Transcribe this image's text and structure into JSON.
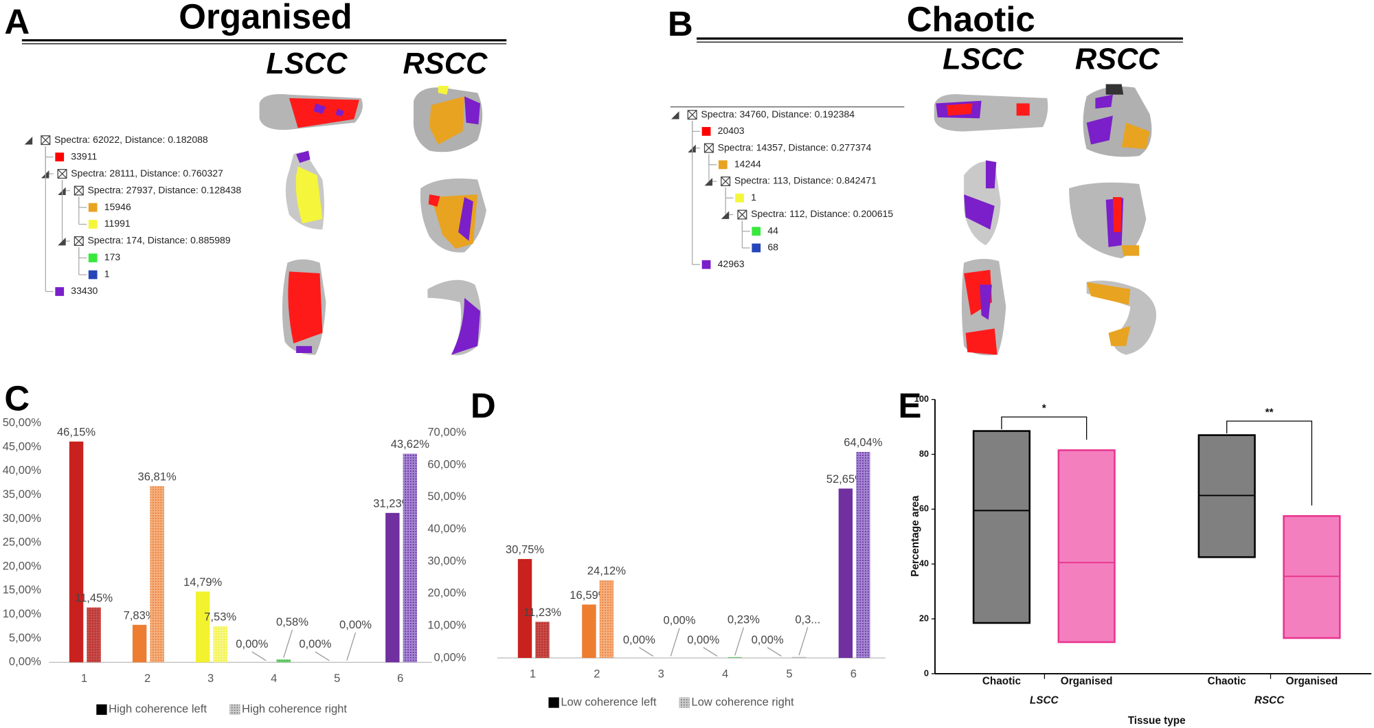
{
  "panels": {
    "A": {
      "letter": "A",
      "title": "Organised",
      "columns": [
        "LSCC",
        "RSCC"
      ],
      "tree": {
        "label": "Spectra: 62022, Distance: 0.182088",
        "children": [
          {
            "label": "33911",
            "color": "#ff0000"
          },
          {
            "label": "Spectra: 28111, Distance: 0.760327",
            "children": [
              {
                "label": "Spectra: 27937, Distance: 0.128438",
                "children": [
                  {
                    "label": "15946",
                    "color": "#e8a321"
                  },
                  {
                    "label": "11991",
                    "color": "#f5f53b"
                  }
                ]
              },
              {
                "label": "Spectra: 174, Distance: 0.885989",
                "children": [
                  {
                    "label": "173",
                    "color": "#39e83c"
                  },
                  {
                    "label": "1",
                    "color": "#2446b8"
                  }
                ]
              }
            ]
          },
          {
            "label": "33430",
            "color": "#7a1fc9"
          }
        ]
      }
    },
    "B": {
      "letter": "B",
      "title": "Chaotic",
      "columns": [
        "LSCC",
        "RSCC"
      ],
      "tree": {
        "label": "Spectra: 34760, Distance: 0.192384",
        "children": [
          {
            "label": "20403",
            "color": "#ff0000"
          },
          {
            "label": "Spectra: 14357, Distance: 0.277374",
            "children": [
              {
                "label": "14244",
                "color": "#e8a321"
              },
              {
                "label": "Spectra: 113, Distance: 0.842471",
                "children": [
                  {
                    "label": "1",
                    "color": "#f5f53b"
                  },
                  {
                    "label": "Spectra: 112, Distance: 0.200615",
                    "children": [
                      {
                        "label": "44",
                        "color": "#39e83c"
                      },
                      {
                        "label": "68",
                        "color": "#2446b8"
                      }
                    ]
                  }
                ]
              }
            ]
          },
          {
            "label": "42963",
            "color": "#7a1fc9"
          }
        ]
      }
    }
  },
  "chart_data": [
    {
      "type": "bar",
      "letter": "C",
      "categories": [
        "1",
        "2",
        "3",
        "4",
        "5",
        "6"
      ],
      "category_colors": [
        "#c9211e",
        "#ed7d31",
        "#f2f22e",
        "#39b54a",
        "#a6a6a6",
        "#7030a0"
      ],
      "category_colors_right": [
        "#c0504d",
        "#f4b183",
        "#f7f78a",
        "#70d070",
        "#c8c8c8",
        "#a48ad4"
      ],
      "series": [
        {
          "name": "High coherence left",
          "color": "#000000",
          "values": [
            46.15,
            7.83,
            14.79,
            0,
            0,
            31.23
          ],
          "value_labels": [
            "46,15%",
            "7,83%",
            "14,79%",
            "0,00%",
            "0,00%",
            "31,23%"
          ]
        },
        {
          "name": "High coherence right",
          "color": "#7f7f7f",
          "values": [
            11.45,
            36.81,
            7.53,
            0.58,
            0,
            43.62
          ],
          "value_labels": [
            "11,45%",
            "36,81%",
            "7,53%",
            "0,58%",
            "0,00%",
            "43,62%"
          ]
        }
      ],
      "ylim": [
        0,
        50
      ],
      "yticks": [
        {
          "value": 0,
          "label": "0,00%"
        },
        {
          "value": 5,
          "label": "5,00%"
        },
        {
          "value": 10,
          "label": "10,00%"
        },
        {
          "value": 15,
          "label": "15,00%"
        },
        {
          "value": 20,
          "label": "20,00%"
        },
        {
          "value": 25,
          "label": "25,00%"
        },
        {
          "value": 30,
          "label": "30,00%"
        },
        {
          "value": 35,
          "label": "35,00%"
        },
        {
          "value": 40,
          "label": "40,00%"
        },
        {
          "value": 45,
          "label": "45,00%"
        },
        {
          "value": 50,
          "label": "50,00%"
        }
      ],
      "legend": "bottom"
    },
    {
      "type": "bar",
      "letter": "D",
      "categories": [
        "1",
        "2",
        "3",
        "4",
        "5",
        "6"
      ],
      "category_colors": [
        "#c9211e",
        "#ed7d31",
        "#f2f22e",
        "#39b54a",
        "#a6a6a6",
        "#7030a0"
      ],
      "category_colors_right": [
        "#c0504d",
        "#f4b183",
        "#f7f78a",
        "#70d070",
        "#c8c8c8",
        "#a48ad4"
      ],
      "series": [
        {
          "name": "Low coherence left",
          "color": "#000000",
          "values": [
            30.75,
            16.59,
            0,
            0,
            0,
            52.65
          ],
          "value_labels": [
            "30,75%",
            "16,59%",
            "0,00%",
            "0,00%",
            "0,00%",
            "52,65%"
          ]
        },
        {
          "name": "Low coherence right",
          "color": "#7f7f7f",
          "values": [
            11.23,
            24.12,
            0,
            0.23,
            0.3,
            64.04
          ],
          "value_labels": [
            "11,23%",
            "24,12%",
            "0,00%",
            "0,23%",
            "0,3...",
            "64,04%"
          ]
        }
      ],
      "ylim": [
        0,
        70
      ],
      "yticks": [
        {
          "value": 0,
          "label": "0,00%"
        },
        {
          "value": 10,
          "label": "10,00%"
        },
        {
          "value": 20,
          "label": "20,00%"
        },
        {
          "value": 30,
          "label": "30,00%"
        },
        {
          "value": 40,
          "label": "40,00%"
        },
        {
          "value": 50,
          "label": "50,00%"
        },
        {
          "value": 60,
          "label": "60,00%"
        },
        {
          "value": 70,
          "label": "70,00%"
        }
      ],
      "legend": "bottom"
    },
    {
      "type": "box",
      "letter": "E",
      "categories": [
        "Chaotic",
        "Organised",
        "Chaotic",
        "Organised"
      ],
      "groups": [
        "LSCC",
        "RSCC"
      ],
      "boxes": [
        {
          "low": 18.5,
          "median": 59.5,
          "high": 88.5,
          "color": "#808080",
          "stroke": "#000000"
        },
        {
          "low": 11.5,
          "median": 40.5,
          "high": 81.5,
          "color": "#f47fbf",
          "stroke": "#e8358e"
        },
        {
          "low": 42.5,
          "median": 65,
          "high": 87,
          "color": "#808080",
          "stroke": "#000000"
        },
        {
          "low": 13,
          "median": 35.5,
          "high": 57.5,
          "color": "#f47fbf",
          "stroke": "#e8358e"
        }
      ],
      "annotations": [
        "*",
        "**"
      ],
      "ylabel": "Percentage area",
      "xlabel": "Tissue type",
      "ylim": [
        0,
        100
      ],
      "yticks": [
        0,
        20,
        40,
        60,
        80,
        100
      ]
    }
  ]
}
